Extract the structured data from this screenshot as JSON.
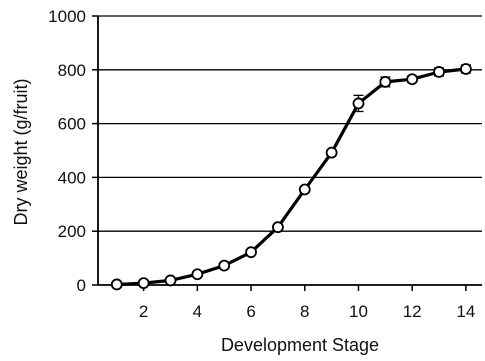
{
  "chart_data": {
    "type": "line",
    "title": "",
    "xlabel": "Development Stage",
    "ylabel": "Dry weight (g/fruit)",
    "xlim": [
      0.3,
      14.6
    ],
    "ylim": [
      0,
      1000
    ],
    "xticks": [
      2,
      4,
      6,
      8,
      10,
      12,
      14
    ],
    "yticks": [
      0,
      200,
      400,
      600,
      800,
      1000
    ],
    "grid": "horizontal",
    "series": [
      {
        "x": [
          1,
          2,
          3,
          4,
          5,
          6,
          7,
          8,
          9,
          10,
          11,
          12,
          13,
          14
        ],
        "y": [
          2,
          7,
          17,
          40,
          72,
          122,
          215,
          355,
          492,
          675,
          755,
          765,
          792,
          803
        ],
        "error": [
          3,
          3,
          4,
          5,
          6,
          7,
          8,
          10,
          10,
          30,
          18,
          12,
          15,
          15
        ]
      }
    ]
  }
}
